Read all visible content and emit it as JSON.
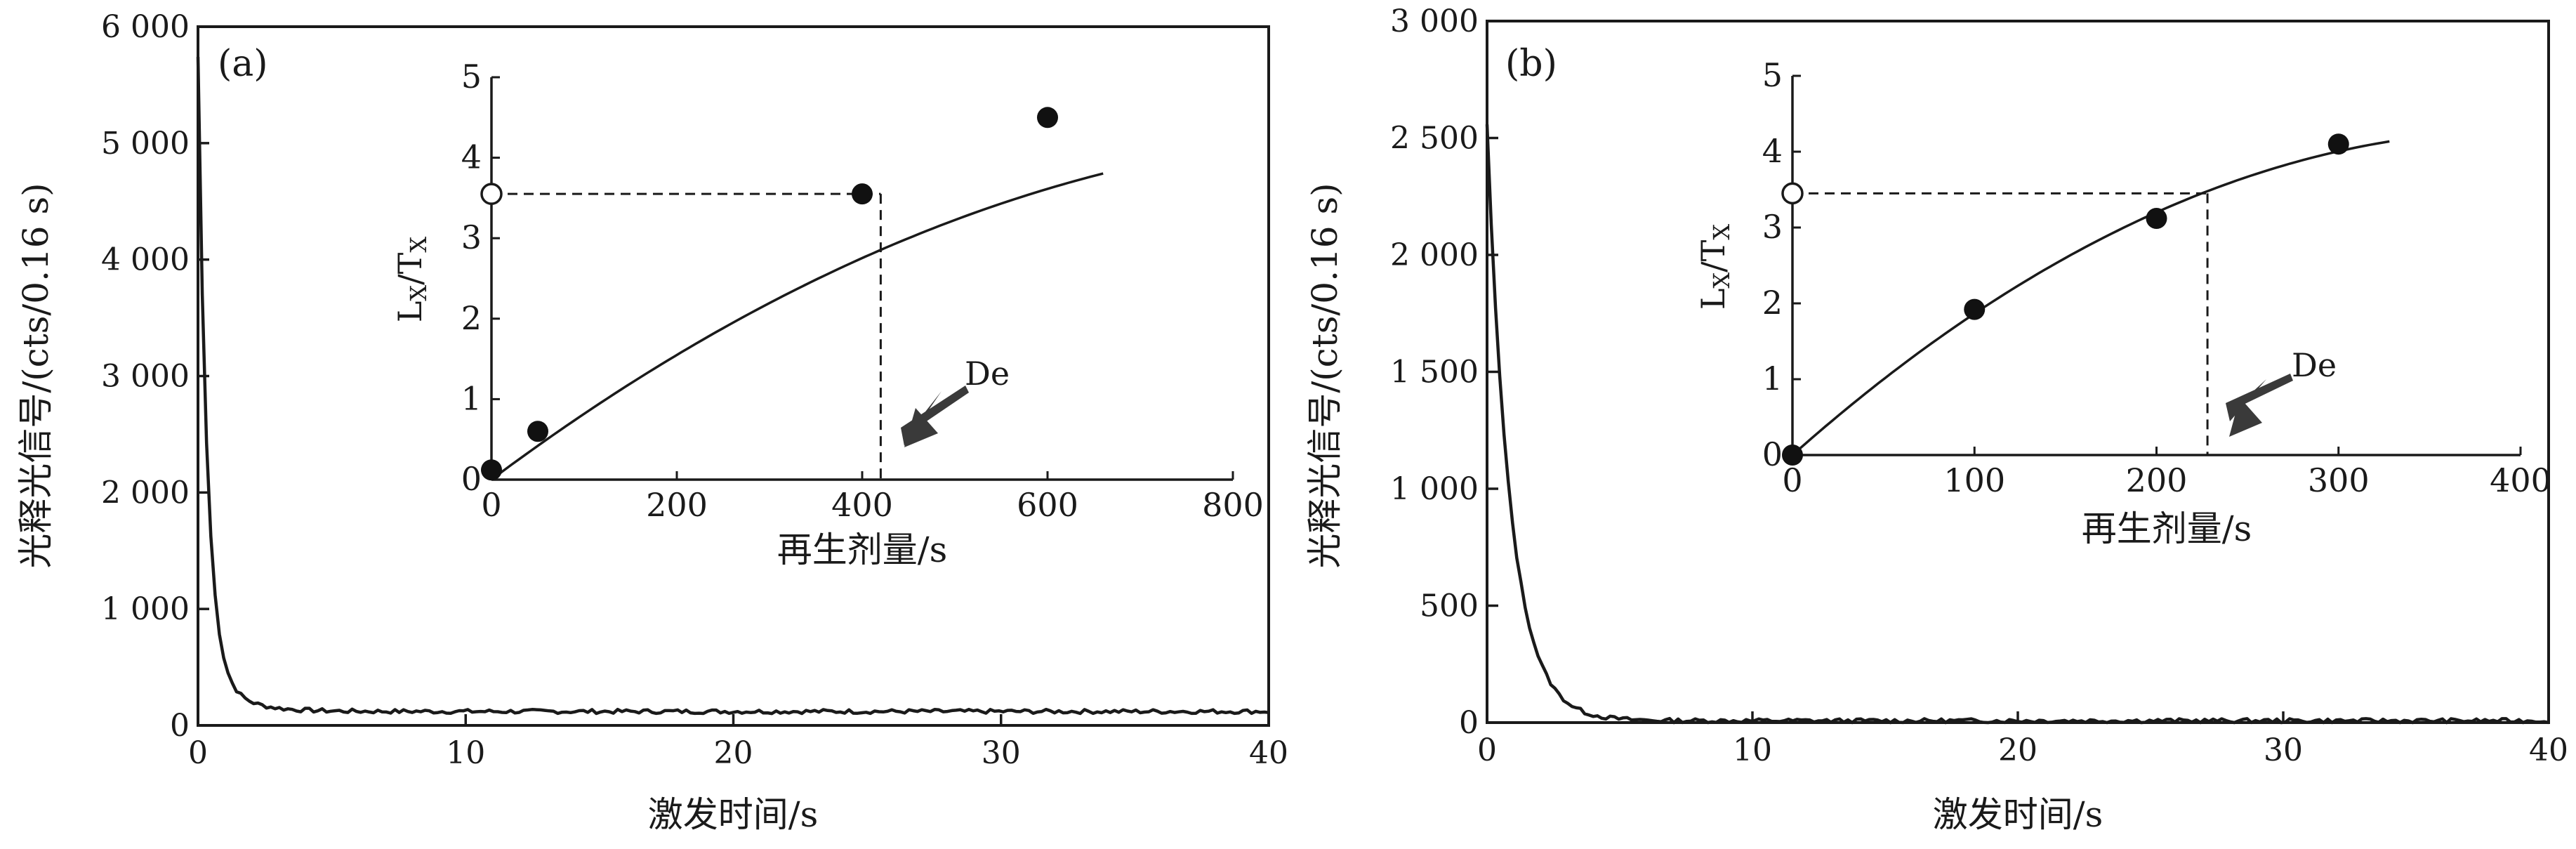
{
  "chart_data": [
    {
      "id": "a",
      "type": "line",
      "panel_label": "(a)",
      "xlabel": "激发时间/s",
      "ylabel": "光释光信号/(cts/0.16 s)",
      "xlim": [
        0,
        40
      ],
      "ylim": [
        0,
        6000
      ],
      "xticks": [
        0,
        10,
        20,
        30,
        40
      ],
      "yticks": [
        0,
        1000,
        2000,
        3000,
        4000,
        5000,
        6000
      ],
      "xtick_labels": [
        "0",
        "10",
        "20",
        "30",
        "40"
      ],
      "ytick_labels": [
        "0",
        "1 000",
        "2 000",
        "3 000",
        "4 000",
        "5 000",
        "6 000"
      ],
      "decay": {
        "initial": 5200,
        "fast_rate": 3.0,
        "slow_amp": 420,
        "slow_rate": 0.9,
        "background": 120,
        "noise": 18
      },
      "inset": {
        "type": "scatter",
        "xlabel": "再生剂量/s",
        "ylabel_main": "L",
        "ylabel_sub1": "X",
        "ylabel_mid": "/T",
        "ylabel_sub2": "X",
        "xlim": [
          0,
          800
        ],
        "ylim": [
          0,
          5
        ],
        "xticks": [
          0,
          200,
          400,
          600,
          800
        ],
        "yticks": [
          0,
          1,
          2,
          3,
          4,
          5
        ],
        "xtick_labels": [
          "0",
          "200",
          "400",
          "600",
          "800"
        ],
        "ytick_labels": [
          "0",
          "1",
          "2",
          "3",
          "4",
          "5"
        ],
        "points": [
          {
            "x": 0,
            "y": 0.12
          },
          {
            "x": 50,
            "y": 0.6
          },
          {
            "x": 400,
            "y": 3.55
          },
          {
            "x": 600,
            "y": 4.5
          }
        ],
        "natural_signal": {
          "x": 0,
          "y": 3.55
        },
        "de": {
          "x": 420,
          "y": 3.55
        },
        "de_label": "De",
        "fit": {
          "a": 0.001,
          "b": 0.0086,
          "c": -4.3e-06,
          "x_end": 660
        }
      }
    },
    {
      "id": "b",
      "type": "line",
      "panel_label": "(b)",
      "xlabel": "激发时间/s",
      "ylabel": "光释光信号/(cts/0.16 s)",
      "xlim": [
        0,
        40
      ],
      "ylim": [
        0,
        3000
      ],
      "xticks": [
        0,
        10,
        20,
        30,
        40
      ],
      "yticks": [
        0,
        500,
        1000,
        1500,
        2000,
        2500,
        3000
      ],
      "xtick_labels": [
        "0",
        "10",
        "20",
        "30",
        "40"
      ],
      "ytick_labels": [
        "0",
        "500",
        "1 000",
        "1 500",
        "2 000",
        "2 500",
        "3 000"
      ],
      "decay": {
        "initial": 2550,
        "fast_rate": 1.15,
        "slow_amp": 0,
        "slow_rate": 1,
        "background": 8,
        "noise": 9
      },
      "inset": {
        "type": "scatter",
        "xlabel": "再生剂量/s",
        "ylabel_main": "L",
        "ylabel_sub1": "X",
        "ylabel_mid": "/T",
        "ylabel_sub2": "X",
        "xlim": [
          0,
          400
        ],
        "ylim": [
          0,
          5
        ],
        "xticks": [
          0,
          100,
          200,
          300,
          400
        ],
        "yticks": [
          0,
          1,
          2,
          3,
          4,
          5
        ],
        "xtick_labels": [
          "0",
          "100",
          "200",
          "300",
          "400"
        ],
        "ytick_labels": [
          "0",
          "1",
          "2",
          "3",
          "4",
          "5"
        ],
        "points": [
          {
            "x": 0,
            "y": 0
          },
          {
            "x": 100,
            "y": 1.92
          },
          {
            "x": 200,
            "y": 3.12
          },
          {
            "x": 300,
            "y": 4.1
          }
        ],
        "natural_signal": {
          "x": 0,
          "y": 3.45
        },
        "de": {
          "x": 228,
          "y": 3.45
        },
        "de_label": "De",
        "fit": {
          "a": 0,
          "b": 0.0213,
          "c": -2.65e-05,
          "x_end": 328
        }
      }
    }
  ]
}
